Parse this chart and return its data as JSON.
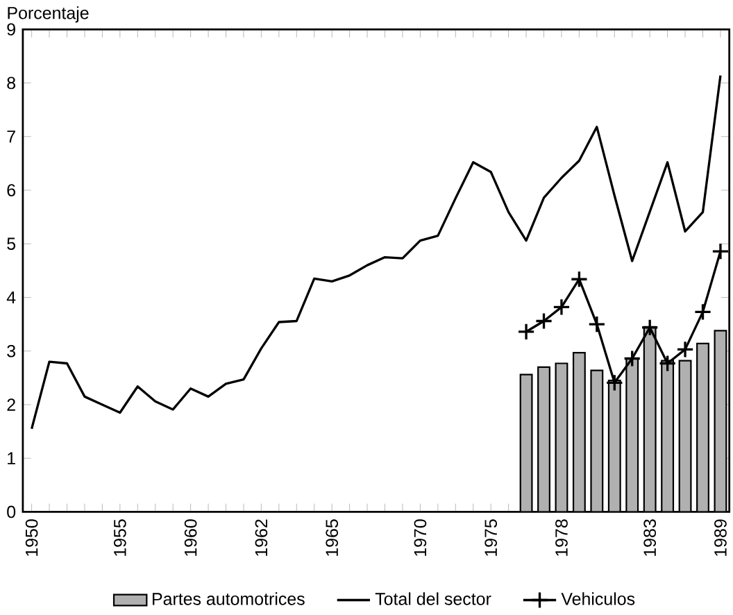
{
  "chart_data": {
    "type": "line",
    "ylabel": "Porcentaje",
    "categories": [
      "1950",
      null,
      null,
      null,
      null,
      "1955",
      null,
      null,
      null,
      "1960",
      null,
      null,
      null,
      "1962",
      null,
      null,
      null,
      "1965",
      null,
      null,
      null,
      null,
      "1970",
      null,
      null,
      null,
      "1975",
      null,
      null,
      null,
      "1978",
      null,
      null,
      null,
      null,
      "1983",
      null,
      null,
      null,
      "1989"
    ],
    "series": [
      {
        "name": "Partes automotrices",
        "type": "bar",
        "color": "#b0b0b0",
        "values": [
          null,
          null,
          null,
          null,
          null,
          null,
          null,
          null,
          null,
          null,
          null,
          null,
          null,
          null,
          null,
          null,
          null,
          null,
          null,
          null,
          null,
          null,
          null,
          null,
          null,
          null,
          null,
          null,
          2.56,
          2.7,
          2.77,
          2.97,
          2.64,
          2.45,
          2.86,
          3.45,
          2.82,
          2.82,
          3.14,
          3.38
        ]
      },
      {
        "name": "Total del sector",
        "color": "#000000",
        "marker": "none",
        "values": [
          1.55,
          2.8,
          2.77,
          2.15,
          2.0,
          1.85,
          2.34,
          2.06,
          1.91,
          2.3,
          2.15,
          2.39,
          2.47,
          3.05,
          3.54,
          3.56,
          4.35,
          4.3,
          4.41,
          4.6,
          4.75,
          4.73,
          5.06,
          5.15,
          5.85,
          6.52,
          6.34,
          5.59,
          5.06,
          5.86,
          6.23,
          6.55,
          7.18,
          5.9,
          4.68,
          5.6,
          6.52,
          5.23,
          5.59,
          8.14
        ]
      },
      {
        "name": "Vehiculos",
        "color": "#000000",
        "marker": "cross",
        "values": [
          null,
          null,
          null,
          null,
          null,
          null,
          null,
          null,
          null,
          null,
          null,
          null,
          null,
          null,
          null,
          null,
          null,
          null,
          null,
          null,
          null,
          null,
          null,
          null,
          null,
          null,
          null,
          null,
          3.36,
          3.56,
          3.82,
          4.34,
          3.5,
          2.41,
          2.86,
          3.44,
          2.77,
          3.03,
          3.73,
          4.86
        ]
      }
    ],
    "ylim": [
      0,
      9
    ],
    "yticks": [
      0,
      1,
      2,
      3,
      4,
      5,
      6,
      7,
      8,
      9
    ],
    "legend": "bottom",
    "grid": false
  }
}
